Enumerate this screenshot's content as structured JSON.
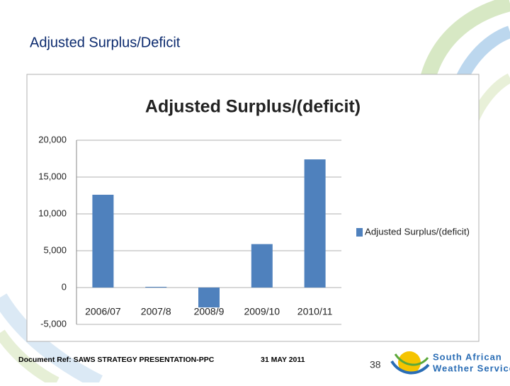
{
  "slide_title": "Adjusted Surplus/Deficit",
  "footer": {
    "document_ref": "Document Ref: SAWS STRATEGY PRESENTATION-PPC",
    "date": "31 MAY 2011",
    "page": "38"
  },
  "logo": {
    "line1": "South African",
    "line2": "Weather Service"
  },
  "chart_data": {
    "type": "bar",
    "title": "Adjusted Surplus/(deficit)",
    "categories": [
      "2006/07",
      "2007/8",
      "2008/9",
      "2009/10",
      "2010/11"
    ],
    "series": [
      {
        "name": "Adjusted Surplus/(deficit)",
        "color": "#4f81bd",
        "values": [
          12600,
          100,
          -2700,
          5900,
          17400
        ]
      }
    ],
    "ylim": [
      -5000,
      20000
    ],
    "yticks": [
      {
        "value": -5000,
        "label": "-5,000"
      },
      0,
      {
        "value": 5000,
        "label": "5,000"
      },
      {
        "value": 10000,
        "label": "10,000"
      },
      {
        "value": 15000,
        "label": "15,000"
      },
      {
        "value": 20000,
        "label": "20,000"
      }
    ],
    "grid": true,
    "legend": "right"
  }
}
